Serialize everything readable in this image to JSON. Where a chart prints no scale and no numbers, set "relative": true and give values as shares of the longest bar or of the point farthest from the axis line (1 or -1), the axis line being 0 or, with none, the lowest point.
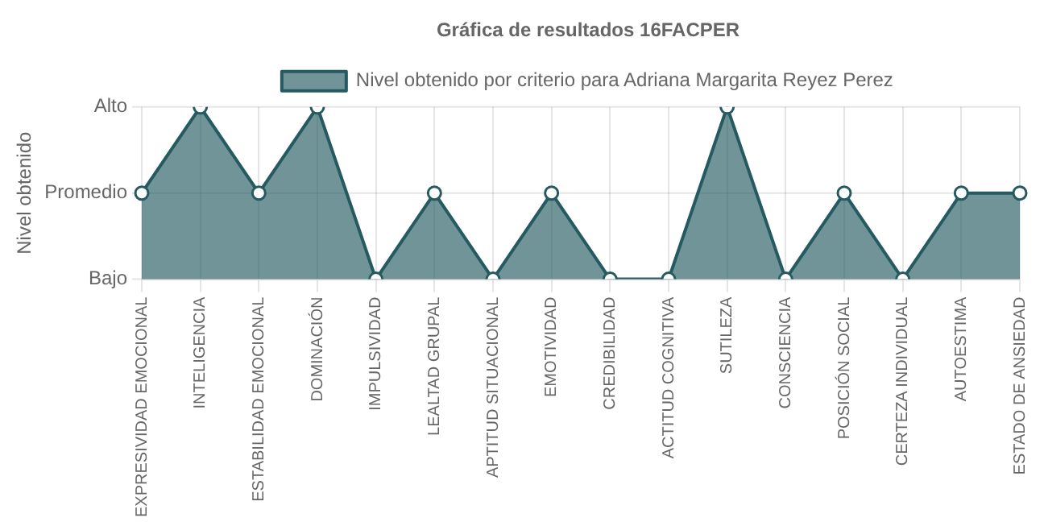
{
  "chart_data": {
    "type": "area",
    "title": "Gráfica de resultados 16FACPER",
    "relative": true,
    "categories": [
      "EXPRESIVIDAD EMOCIONAL",
      "INTELIGENCIA",
      "ESTABILIDAD EMOCIONAL",
      "DOMINACIÓN",
      "IMPULSIVIDAD",
      "LEALTAD GRUPAL",
      "APTITUD SITUACIONAL",
      "EMOTIVIDAD",
      "CREDIBILIDAD",
      "ACTITUD COGNITIVA",
      "SUTILEZA",
      "CONSCIENCIA",
      "POSICIÓN SOCIAL",
      "CERTEZA INDIVIDUAL",
      "AUTOESTIMA",
      "ESTADO DE ANSIEDAD"
    ],
    "series": [
      {
        "name": "Nivel obtenido por criterio para Adriana Margarita Reyez Perez",
        "color": "#245a60",
        "values": [
          0.5,
          1,
          0.5,
          1,
          0,
          0.5,
          0,
          0.5,
          0,
          0,
          1,
          0,
          0.5,
          0,
          0.5,
          0.5
        ]
      }
    ],
    "annotations": [
      "Nivel obtenido",
      "Alto",
      "Promedio",
      "Bajo"
    ],
    "grid": true,
    "legend": "top",
    "marker": "circle"
  }
}
